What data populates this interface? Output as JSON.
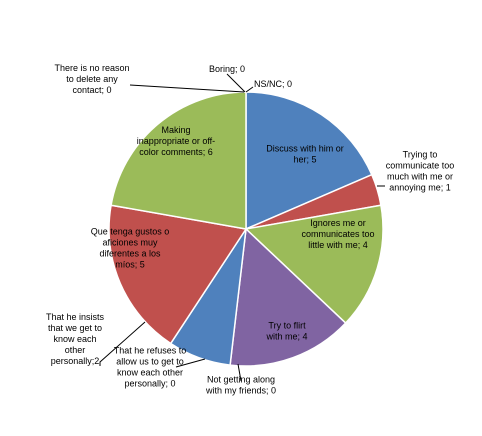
{
  "chart_data": {
    "type": "pie",
    "title": "",
    "legend": "none",
    "slices": [
      {
        "label_lines": [
          "NS/NC; 0"
        ],
        "category": "NS/NC",
        "value": 0,
        "color": "#4A7EBB",
        "label_position": "outside"
      },
      {
        "label_lines": [
          "Discuss with him or",
          "her; 5"
        ],
        "category": "Discuss with him or her",
        "value": 5,
        "color": "#4F81BD",
        "label_position": "inside"
      },
      {
        "label_lines": [
          "Trying to",
          "communicate too",
          "much with me or",
          "annoying me; 1"
        ],
        "category": "Trying to communicate too much with me or annoying me",
        "value": 1,
        "color": "#C0504D",
        "label_position": "outside"
      },
      {
        "label_lines": [
          "Ignores me or",
          "communicates too",
          "little with me; 4"
        ],
        "category": "Ignores me or communicates too little with me",
        "value": 4,
        "color": "#9BBB59",
        "label_position": "inside"
      },
      {
        "label_lines": [
          "Try to flirt",
          "with me; 4"
        ],
        "category": "Try to flirt with me",
        "value": 4,
        "color": "#8064A2",
        "label_position": "inside"
      },
      {
        "label_lines": [
          "Not getting along",
          "with my friends; 0"
        ],
        "category": "Not getting along with my friends",
        "value": 0,
        "color": "#4BACC6",
        "label_position": "outside"
      },
      {
        "label_lines": [
          "That he refuses to",
          "allow us to get to",
          "know each other",
          "personally; 0"
        ],
        "category": "That he refuses to allow us to get to know each other personally",
        "value": 0,
        "color": "#F79646",
        "label_position": "outside"
      },
      {
        "label_lines": [
          "That he insists",
          "that we get to",
          "know each",
          "other",
          "personally;2"
        ],
        "category": "That he insists that we get to know each other personally",
        "value": 2,
        "color": "#4F81BD",
        "label_position": "outside"
      },
      {
        "label_lines": [
          "Que tenga gustos o",
          "aficiones muy",
          "diferentes a los",
          "míos; 5"
        ],
        "category": "Que tenga gustos o aficiones muy diferentes a los míos",
        "value": 5,
        "color": "#C0504D",
        "label_position": "inside"
      },
      {
        "label_lines": [
          "Making",
          "inappropriate or off-",
          "color comments; 6"
        ],
        "category": "Making inappropriate or off-color comments",
        "value": 6,
        "color": "#9BBB59",
        "label_position": "inside"
      },
      {
        "label_lines": [
          "There is no reason",
          "to delete any",
          "contact; 0"
        ],
        "category": "There is no reason to delete any contact",
        "value": 0,
        "color": "#8064A2",
        "label_position": "outside"
      },
      {
        "label_lines": [
          "Boring; 0"
        ],
        "category": "Boring",
        "value": 0,
        "color": "#4BACC6",
        "label_position": "outside"
      }
    ]
  }
}
